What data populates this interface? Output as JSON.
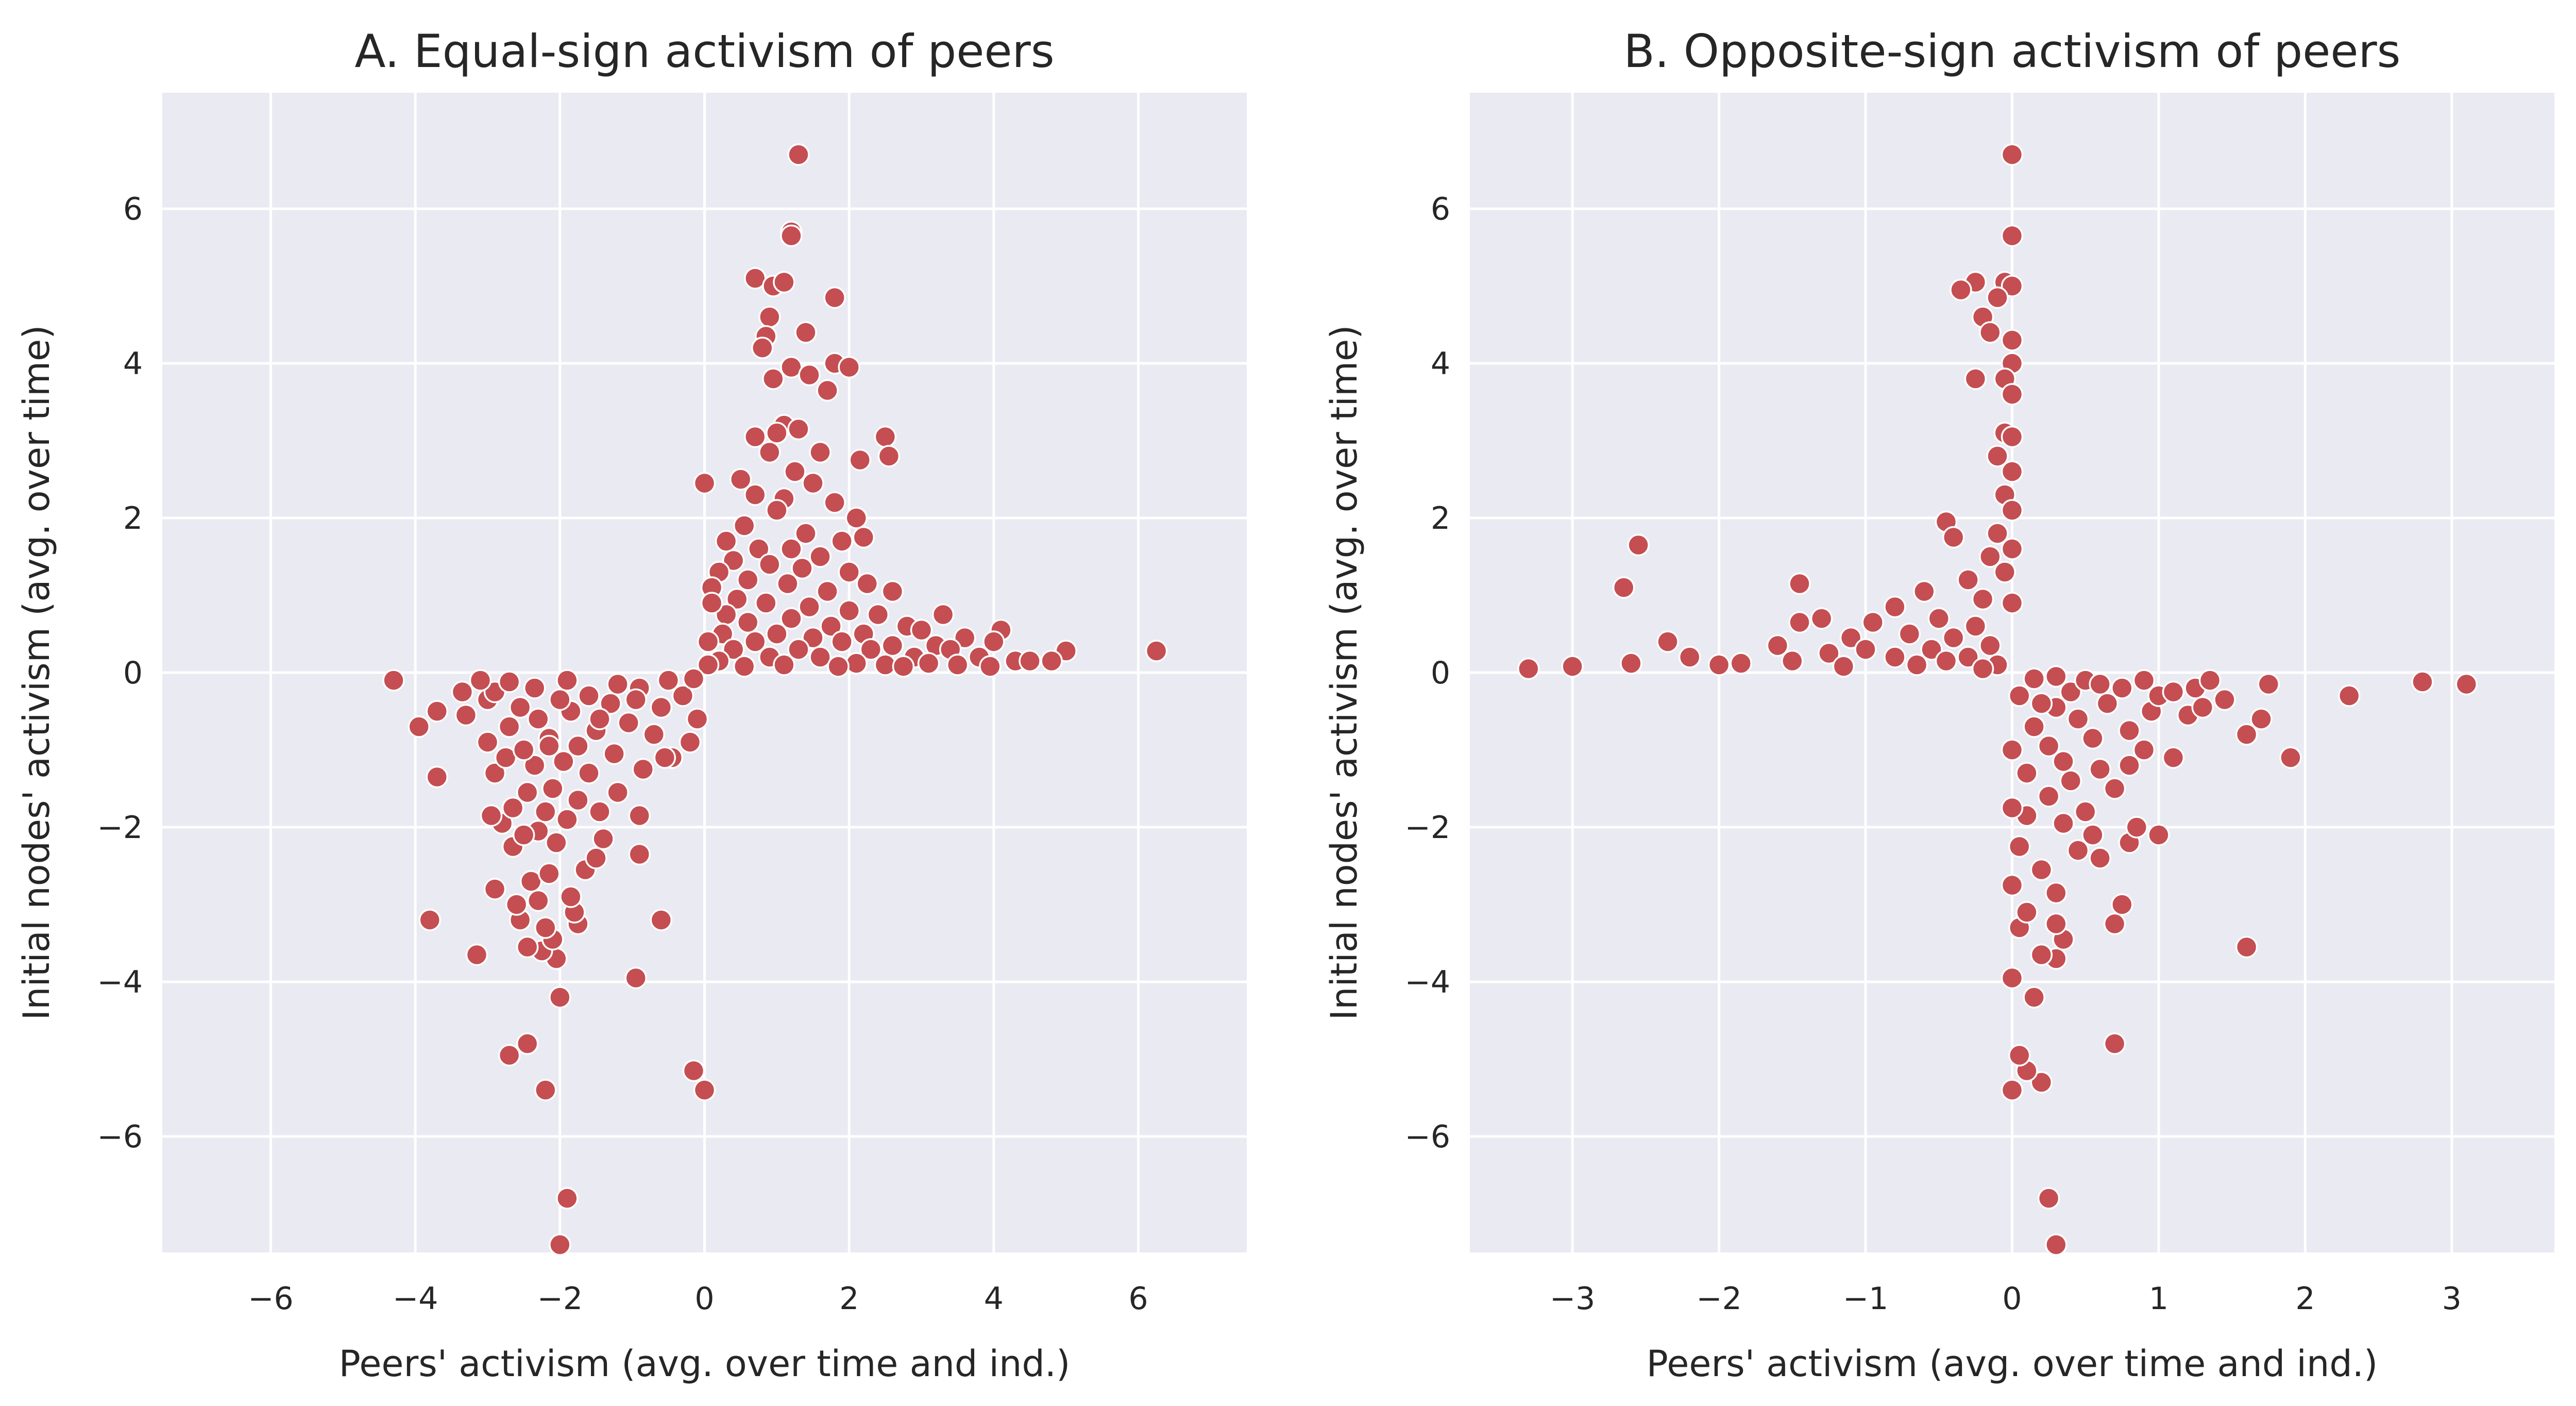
{
  "chart_data": [
    {
      "type": "scatter",
      "title": "A. Equal-sign activism of peers",
      "xlabel": "Peers' activism (avg. over time and ind.)",
      "ylabel": "Initial nodes' activism (avg. over time)",
      "xlim": [
        -7.5,
        7.5
      ],
      "ylim": [
        -7.5,
        7.5
      ],
      "xticks": [
        -6,
        -4,
        -2,
        0,
        2,
        4,
        6
      ],
      "yticks": [
        -6,
        -4,
        -2,
        0,
        2,
        4,
        6
      ],
      "grid": true,
      "marker_color": "#c44e52",
      "points": [
        [
          1.3,
          6.7
        ],
        [
          1.2,
          5.7
        ],
        [
          1.2,
          5.65
        ],
        [
          0.7,
          5.1
        ],
        [
          0.95,
          5.0
        ],
        [
          1.1,
          5.05
        ],
        [
          1.8,
          4.85
        ],
        [
          0.9,
          4.6
        ],
        [
          1.4,
          4.4
        ],
        [
          0.85,
          4.35
        ],
        [
          0.8,
          4.2
        ],
        [
          1.2,
          3.95
        ],
        [
          1.8,
          4.0
        ],
        [
          2.0,
          3.95
        ],
        [
          1.45,
          3.85
        ],
        [
          0.95,
          3.8
        ],
        [
          1.7,
          3.65
        ],
        [
          1.1,
          3.2
        ],
        [
          1.3,
          3.15
        ],
        [
          0.7,
          3.05
        ],
        [
          1.0,
          3.1
        ],
        [
          2.5,
          3.05
        ],
        [
          2.55,
          2.8
        ],
        [
          2.15,
          2.75
        ],
        [
          0.9,
          2.85
        ],
        [
          1.6,
          2.85
        ],
        [
          1.25,
          2.6
        ],
        [
          0.5,
          2.5
        ],
        [
          1.5,
          2.45
        ],
        [
          0.0,
          2.45
        ],
        [
          0.7,
          2.3
        ],
        [
          1.1,
          2.25
        ],
        [
          1.8,
          2.2
        ],
        [
          2.1,
          2.0
        ],
        [
          1.0,
          2.1
        ],
        [
          0.55,
          1.9
        ],
        [
          1.4,
          1.8
        ],
        [
          0.3,
          1.7
        ],
        [
          0.75,
          1.6
        ],
        [
          1.2,
          1.6
        ],
        [
          1.9,
          1.7
        ],
        [
          2.2,
          1.75
        ],
        [
          0.4,
          1.45
        ],
        [
          1.6,
          1.5
        ],
        [
          0.9,
          1.4
        ],
        [
          1.35,
          1.35
        ],
        [
          2.0,
          1.3
        ],
        [
          0.2,
          1.3
        ],
        [
          0.6,
          1.2
        ],
        [
          1.15,
          1.15
        ],
        [
          2.25,
          1.15
        ],
        [
          1.7,
          1.05
        ],
        [
          0.1,
          1.1
        ],
        [
          0.45,
          0.95
        ],
        [
          2.6,
          1.05
        ],
        [
          0.85,
          0.9
        ],
        [
          1.45,
          0.85
        ],
        [
          2.0,
          0.8
        ],
        [
          0.3,
          0.75
        ],
        [
          2.4,
          0.75
        ],
        [
          1.2,
          0.7
        ],
        [
          0.6,
          0.65
        ],
        [
          3.3,
          0.75
        ],
        [
          1.75,
          0.6
        ],
        [
          2.8,
          0.6
        ],
        [
          0.25,
          0.5
        ],
        [
          1.0,
          0.5
        ],
        [
          2.2,
          0.5
        ],
        [
          3.0,
          0.55
        ],
        [
          1.5,
          0.45
        ],
        [
          4.1,
          0.55
        ],
        [
          3.6,
          0.45
        ],
        [
          0.7,
          0.4
        ],
        [
          1.9,
          0.4
        ],
        [
          2.6,
          0.35
        ],
        [
          3.2,
          0.35
        ],
        [
          4.0,
          0.4
        ],
        [
          0.4,
          0.3
        ],
        [
          1.3,
          0.3
        ],
        [
          2.3,
          0.3
        ],
        [
          3.4,
          0.3
        ],
        [
          5.0,
          0.28
        ],
        [
          6.25,
          0.28
        ],
        [
          0.9,
          0.2
        ],
        [
          1.6,
          0.2
        ],
        [
          2.9,
          0.2
        ],
        [
          3.8,
          0.2
        ],
        [
          4.3,
          0.15
        ],
        [
          0.2,
          0.15
        ],
        [
          2.1,
          0.12
        ],
        [
          3.1,
          0.12
        ],
        [
          4.5,
          0.15
        ],
        [
          4.8,
          0.15
        ],
        [
          1.1,
          0.1
        ],
        [
          2.5,
          0.1
        ],
        [
          3.5,
          0.1
        ],
        [
          0.55,
          0.08
        ],
        [
          1.85,
          0.08
        ],
        [
          2.75,
          0.08
        ],
        [
          3.95,
          0.08
        ],
        [
          0.05,
          0.4
        ],
        [
          0.1,
          0.9
        ],
        [
          0.05,
          0.1
        ],
        [
          -2.0,
          -7.4
        ],
        [
          -1.9,
          -6.8
        ],
        [
          -2.2,
          -5.4
        ],
        [
          0.0,
          -5.4
        ],
        [
          -0.15,
          -5.15
        ],
        [
          -2.7,
          -4.95
        ],
        [
          -2.45,
          -4.8
        ],
        [
          -2.0,
          -4.2
        ],
        [
          -0.95,
          -3.95
        ],
        [
          -2.05,
          -3.7
        ],
        [
          -3.15,
          -3.65
        ],
        [
          -2.25,
          -3.6
        ],
        [
          -2.45,
          -3.55
        ],
        [
          -2.1,
          -3.45
        ],
        [
          -2.2,
          -3.3
        ],
        [
          -1.75,
          -3.25
        ],
        [
          -3.8,
          -3.2
        ],
        [
          -2.55,
          -3.2
        ],
        [
          -0.6,
          -3.2
        ],
        [
          -1.8,
          -3.1
        ],
        [
          -1.85,
          -2.9
        ],
        [
          -2.3,
          -2.95
        ],
        [
          -2.6,
          -3.0
        ],
        [
          -2.9,
          -2.8
        ],
        [
          -1.65,
          -2.55
        ],
        [
          -2.4,
          -2.7
        ],
        [
          -2.15,
          -2.6
        ],
        [
          -0.9,
          -2.35
        ],
        [
          -1.5,
          -2.4
        ],
        [
          -2.65,
          -2.25
        ],
        [
          -2.05,
          -2.2
        ],
        [
          -1.4,
          -2.15
        ],
        [
          -2.3,
          -2.05
        ],
        [
          -2.5,
          -2.1
        ],
        [
          -2.8,
          -1.95
        ],
        [
          -1.9,
          -1.9
        ],
        [
          -0.9,
          -1.85
        ],
        [
          -2.95,
          -1.85
        ],
        [
          -2.2,
          -1.8
        ],
        [
          -1.45,
          -1.8
        ],
        [
          -2.65,
          -1.75
        ],
        [
          -1.75,
          -1.65
        ],
        [
          -2.45,
          -1.55
        ],
        [
          -1.2,
          -1.55
        ],
        [
          -2.1,
          -1.5
        ],
        [
          -3.7,
          -1.35
        ],
        [
          -2.9,
          -1.3
        ],
        [
          -1.6,
          -1.3
        ],
        [
          -0.85,
          -1.25
        ],
        [
          -2.35,
          -1.2
        ],
        [
          -1.95,
          -1.15
        ],
        [
          -2.75,
          -1.1
        ],
        [
          -0.45,
          -1.1
        ],
        [
          -0.55,
          -1.1
        ],
        [
          -1.25,
          -1.05
        ],
        [
          -2.5,
          -1.0
        ],
        [
          -0.2,
          -0.9
        ],
        [
          -1.75,
          -0.95
        ],
        [
          -3.0,
          -0.9
        ],
        [
          -2.15,
          -0.85
        ],
        [
          -0.7,
          -0.8
        ],
        [
          -1.5,
          -0.75
        ],
        [
          -3.95,
          -0.7
        ],
        [
          -2.7,
          -0.7
        ],
        [
          -1.05,
          -0.65
        ],
        [
          -0.1,
          -0.6
        ],
        [
          -2.3,
          -0.6
        ],
        [
          -3.3,
          -0.55
        ],
        [
          -3.7,
          -0.5
        ],
        [
          -1.85,
          -0.5
        ],
        [
          -0.6,
          -0.45
        ],
        [
          -2.55,
          -0.45
        ],
        [
          -1.3,
          -0.4
        ],
        [
          -3.0,
          -0.35
        ],
        [
          -2.0,
          -0.35
        ],
        [
          -0.3,
          -0.3
        ],
        [
          -1.6,
          -0.3
        ],
        [
          -2.9,
          -0.25
        ],
        [
          -3.35,
          -0.25
        ],
        [
          -0.9,
          -0.2
        ],
        [
          -2.35,
          -0.2
        ],
        [
          -4.3,
          -0.1
        ],
        [
          -1.2,
          -0.15
        ],
        [
          -2.7,
          -0.12
        ],
        [
          -0.5,
          -0.1
        ],
        [
          -1.9,
          -0.1
        ],
        [
          -0.15,
          -0.08
        ],
        [
          -3.1,
          -0.1
        ],
        [
          -1.45,
          -0.6
        ],
        [
          -0.95,
          -0.35
        ],
        [
          -2.15,
          -0.95
        ]
      ]
    },
    {
      "type": "scatter",
      "title": "B. Opposite-sign activism of peers",
      "xlabel": "Peers' activism (avg. over time and ind.)",
      "ylabel": "Initial nodes' activism (avg. over time)",
      "xlim": [
        -3.7,
        3.7
      ],
      "ylim": [
        -7.5,
        7.5
      ],
      "xticks": [
        -3,
        -2,
        -1,
        0,
        1,
        2,
        3
      ],
      "yticks": [
        -6,
        -4,
        -2,
        0,
        2,
        4,
        6
      ],
      "grid": true,
      "marker_color": "#c44e52",
      "points": [
        [
          0.0,
          6.7
        ],
        [
          0.0,
          5.65
        ],
        [
          -0.05,
          5.05
        ],
        [
          -0.25,
          5.05
        ],
        [
          0.0,
          5.0
        ],
        [
          -0.35,
          4.95
        ],
        [
          -0.1,
          4.85
        ],
        [
          -0.2,
          4.6
        ],
        [
          -0.15,
          4.4
        ],
        [
          0.0,
          4.3
        ],
        [
          0.0,
          4.0
        ],
        [
          -0.05,
          3.8
        ],
        [
          -0.25,
          3.8
        ],
        [
          0.0,
          3.6
        ],
        [
          -0.05,
          3.1
        ],
        [
          0.0,
          3.05
        ],
        [
          -0.1,
          2.8
        ],
        [
          0.0,
          2.6
        ],
        [
          -0.05,
          2.3
        ],
        [
          0.0,
          2.1
        ],
        [
          -0.45,
          1.95
        ],
        [
          -0.4,
          1.75
        ],
        [
          -0.1,
          1.8
        ],
        [
          0.0,
          1.6
        ],
        [
          -2.55,
          1.65
        ],
        [
          -0.15,
          1.5
        ],
        [
          -0.05,
          1.3
        ],
        [
          -0.3,
          1.2
        ],
        [
          -1.45,
          1.15
        ],
        [
          -2.65,
          1.1
        ],
        [
          -0.6,
          1.05
        ],
        [
          -0.2,
          0.95
        ],
        [
          0.0,
          0.9
        ],
        [
          -0.8,
          0.85
        ],
        [
          -1.3,
          0.7
        ],
        [
          -1.45,
          0.65
        ],
        [
          -0.5,
          0.7
        ],
        [
          -0.95,
          0.65
        ],
        [
          -0.25,
          0.6
        ],
        [
          -0.7,
          0.5
        ],
        [
          -0.4,
          0.45
        ],
        [
          -1.1,
          0.45
        ],
        [
          -2.35,
          0.4
        ],
        [
          -1.6,
          0.35
        ],
        [
          -0.15,
          0.35
        ],
        [
          -0.55,
          0.3
        ],
        [
          -1.0,
          0.3
        ],
        [
          -1.25,
          0.25
        ],
        [
          -2.2,
          0.2
        ],
        [
          -0.3,
          0.2
        ],
        [
          -0.8,
          0.2
        ],
        [
          -1.5,
          0.15
        ],
        [
          -0.45,
          0.15
        ],
        [
          -2.6,
          0.12
        ],
        [
          -2.0,
          0.1
        ],
        [
          -1.85,
          0.12
        ],
        [
          -3.0,
          0.08
        ],
        [
          -3.3,
          0.05
        ],
        [
          -0.1,
          0.1
        ],
        [
          -0.65,
          0.1
        ],
        [
          -1.15,
          0.08
        ],
        [
          -0.2,
          0.05
        ],
        [
          0.3,
          -7.4
        ],
        [
          0.25,
          -6.8
        ],
        [
          0.0,
          -5.4
        ],
        [
          0.2,
          -5.3
        ],
        [
          0.1,
          -5.15
        ],
        [
          0.05,
          -4.95
        ],
        [
          0.7,
          -4.8
        ],
        [
          0.15,
          -4.2
        ],
        [
          0.0,
          -3.95
        ],
        [
          0.3,
          -3.7
        ],
        [
          0.2,
          -3.65
        ],
        [
          1.6,
          -3.55
        ],
        [
          0.35,
          -3.45
        ],
        [
          0.05,
          -3.3
        ],
        [
          0.3,
          -3.25
        ],
        [
          0.7,
          -3.25
        ],
        [
          0.75,
          -3.0
        ],
        [
          0.1,
          -3.1
        ],
        [
          0.3,
          -2.85
        ],
        [
          0.0,
          -2.75
        ],
        [
          0.2,
          -2.55
        ],
        [
          0.6,
          -2.4
        ],
        [
          0.45,
          -2.3
        ],
        [
          0.8,
          -2.2
        ],
        [
          0.05,
          -2.25
        ],
        [
          0.55,
          -2.1
        ],
        [
          1.0,
          -2.1
        ],
        [
          0.85,
          -2.0
        ],
        [
          0.35,
          -1.95
        ],
        [
          0.1,
          -1.85
        ],
        [
          0.5,
          -1.8
        ],
        [
          0.0,
          -1.75
        ],
        [
          0.25,
          -1.6
        ],
        [
          0.7,
          -1.5
        ],
        [
          0.4,
          -1.4
        ],
        [
          0.1,
          -1.3
        ],
        [
          0.6,
          -1.25
        ],
        [
          0.35,
          -1.15
        ],
        [
          1.9,
          -1.1
        ],
        [
          1.1,
          -1.1
        ],
        [
          0.9,
          -1.0
        ],
        [
          0.0,
          -1.0
        ],
        [
          0.25,
          -0.95
        ],
        [
          1.6,
          -0.8
        ],
        [
          0.55,
          -0.85
        ],
        [
          0.8,
          -0.75
        ],
        [
          0.15,
          -0.7
        ],
        [
          1.7,
          -0.6
        ],
        [
          0.45,
          -0.6
        ],
        [
          1.2,
          -0.55
        ],
        [
          0.95,
          -0.5
        ],
        [
          0.3,
          -0.45
        ],
        [
          1.3,
          -0.45
        ],
        [
          0.65,
          -0.4
        ],
        [
          1.45,
          -0.35
        ],
        [
          2.3,
          -0.3
        ],
        [
          1.0,
          -0.3
        ],
        [
          0.05,
          -0.3
        ],
        [
          0.4,
          -0.25
        ],
        [
          1.1,
          -0.25
        ],
        [
          0.75,
          -0.2
        ],
        [
          1.25,
          -0.2
        ],
        [
          1.35,
          -0.1
        ],
        [
          1.75,
          -0.15
        ],
        [
          2.8,
          -0.12
        ],
        [
          3.1,
          -0.15
        ],
        [
          0.5,
          -0.1
        ],
        [
          0.15,
          -0.08
        ],
        [
          0.9,
          -0.1
        ],
        [
          0.3,
          -0.05
        ],
        [
          0.6,
          -0.15
        ],
        [
          0.8,
          -1.2
        ],
        [
          0.2,
          -0.4
        ]
      ]
    }
  ]
}
